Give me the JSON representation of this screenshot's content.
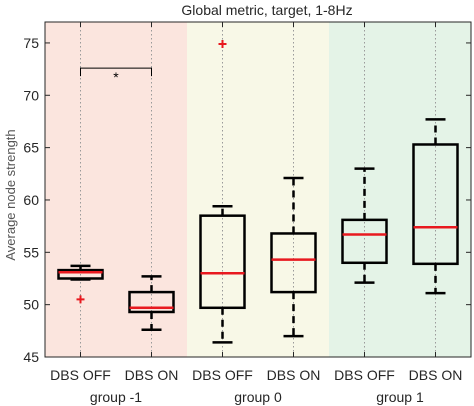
{
  "chart_data": {
    "type": "box",
    "title": "Global metric, target, 1-8Hz",
    "xlabel": "",
    "ylabel": "Average node strength",
    "ylim": [
      45,
      77
    ],
    "yticks": [
      45,
      50,
      55,
      60,
      65,
      70,
      75
    ],
    "grid": false,
    "categories": [
      "DBS OFF",
      "DBS ON",
      "DBS OFF",
      "DBS ON",
      "DBS OFF",
      "DBS ON"
    ],
    "groups": [
      {
        "label": "group -1",
        "color": "#fbe5de"
      },
      {
        "label": "group 0",
        "color": "#f8f8e7"
      },
      {
        "label": "group 1",
        "color": "#e4f3e7"
      }
    ],
    "boxes": [
      {
        "group": 0,
        "label": "DBS OFF",
        "whisker_low": 52.4,
        "q1": 52.5,
        "median": 53.1,
        "q3": 53.3,
        "whisker_high": 53.7,
        "outliers": [
          50.5
        ]
      },
      {
        "group": 0,
        "label": "DBS ON",
        "whisker_low": 47.6,
        "q1": 49.3,
        "median": 49.7,
        "q3": 51.2,
        "whisker_high": 52.7,
        "outliers": []
      },
      {
        "group": 1,
        "label": "DBS OFF",
        "whisker_low": 46.4,
        "q1": 49.7,
        "median": 53.0,
        "q3": 58.5,
        "whisker_high": 59.4,
        "outliers": [
          74.9
        ]
      },
      {
        "group": 1,
        "label": "DBS ON",
        "whisker_low": 47.0,
        "q1": 51.2,
        "median": 54.3,
        "q3": 56.8,
        "whisker_high": 62.1,
        "outliers": []
      },
      {
        "group": 2,
        "label": "DBS OFF",
        "whisker_low": 52.1,
        "q1": 54.0,
        "median": 56.7,
        "q3": 58.1,
        "whisker_high": 63.0,
        "outliers": []
      },
      {
        "group": 2,
        "label": "DBS ON",
        "whisker_low": 51.1,
        "q1": 53.9,
        "median": 57.4,
        "q3": 65.3,
        "whisker_high": 67.7,
        "outliers": []
      }
    ],
    "annotations": [
      {
        "text": "*",
        "from_box": 0,
        "to_box": 1,
        "y": 72.6
      }
    ],
    "box_color": "#000000",
    "median_color": "#e8191f",
    "outlier_color": "#e8191f"
  }
}
